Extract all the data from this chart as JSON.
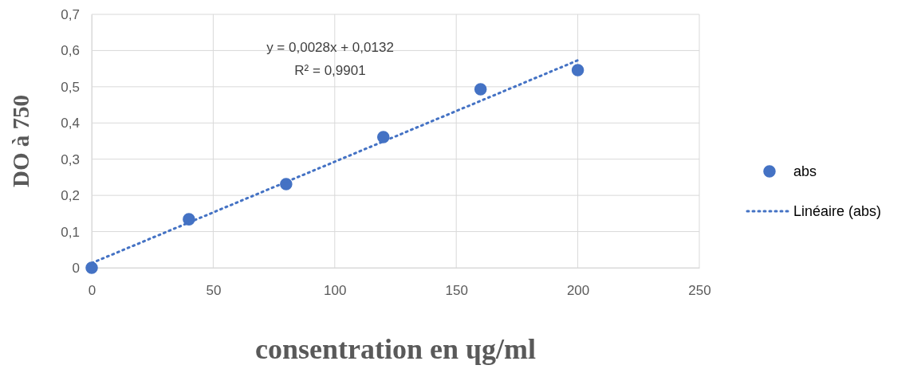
{
  "chart_data": {
    "type": "scatter",
    "xlabel": "consentration en ɥg/ml",
    "ylabel": "DO à 750",
    "x": [
      0,
      40,
      80,
      120,
      160,
      200
    ],
    "series": [
      {
        "name": "abs",
        "color": "#4472c4",
        "marker": "circle",
        "values": [
          0,
          0.134,
          0.231,
          0.361,
          0.493,
          0.546
        ]
      },
      {
        "name": "Linéaire (abs)",
        "type": "line",
        "color": "#4472c4",
        "line_style": "dotted",
        "marker": "none",
        "x": [
          0,
          200
        ],
        "values": [
          0.013,
          0.573
        ]
      }
    ],
    "annotations": [
      "y = 0,0028x + 0,0132",
      "R² = 0,9901"
    ],
    "xlim": [
      0,
      250
    ],
    "xticks": [
      0,
      50,
      100,
      150,
      200,
      250
    ],
    "ylim": [
      0,
      0.7
    ],
    "yticks": [
      0,
      {
        "value": 0.1,
        "label": "0,1"
      },
      {
        "value": 0.2,
        "label": "0,2"
      },
      {
        "value": 0.3,
        "label": "0,3"
      },
      {
        "value": 0.4,
        "label": "0,4"
      },
      {
        "value": 0.5,
        "label": "0,5"
      },
      {
        "value": 0.6,
        "label": "0,6"
      },
      {
        "value": 0.7,
        "label": "0,7"
      }
    ],
    "grid": true,
    "legend": "right"
  }
}
